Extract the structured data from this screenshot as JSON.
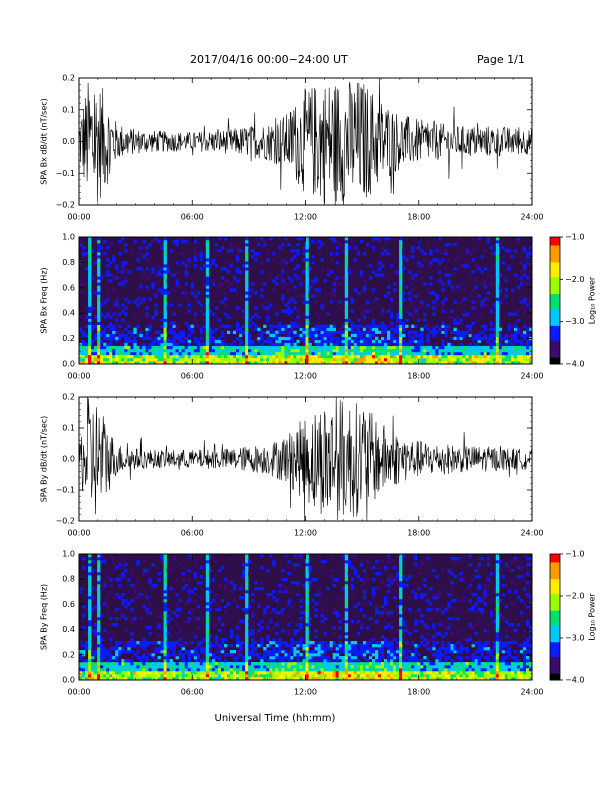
{
  "header": {
    "title": "2017/04/16  00:00−24:00 UT",
    "page": "Page 1/1"
  },
  "colors": {
    "trace": "#000000",
    "spectrogram_background": "#2e0f4a",
    "colormap": [
      "#000000",
      "#3b0b6e",
      "#0a1cff",
      "#00c8ff",
      "#00e070",
      "#9cff00",
      "#ffee00",
      "#ff9a00",
      "#ff0000"
    ]
  },
  "xaxis": {
    "ticks": [
      "00:00",
      "06:00",
      "12:00",
      "18:00",
      "24:00"
    ],
    "label": "Universal Time (hh:mm)"
  },
  "colorbar": {
    "ticks": [
      "−1.0",
      "−2.0",
      "−3.0",
      "−4.0"
    ],
    "label": "Log₁₀ Power"
  },
  "chart_data": [
    {
      "type": "line",
      "panel": "bx",
      "ylabel": "SPA Bx dB/dt (nT/sec)",
      "ylim": [
        -0.2,
        0.2
      ],
      "yticks": [
        "0.2",
        "0.1",
        "0.0",
        "−0.1",
        "−0.2"
      ],
      "xlim": [
        "00:00",
        "24:00"
      ],
      "amplitude_envelope": {
        "hours": [
          0,
          0.5,
          1,
          1.5,
          2,
          3,
          4,
          6,
          8,
          10,
          11,
          12,
          13,
          14,
          15,
          16,
          17,
          18,
          20,
          22,
          24
        ],
        "values": [
          0.08,
          0.2,
          0.2,
          0.14,
          0.06,
          0.04,
          0.035,
          0.03,
          0.04,
          0.06,
          0.09,
          0.17,
          0.2,
          0.2,
          0.2,
          0.14,
          0.09,
          0.07,
          0.05,
          0.05,
          0.04
        ]
      }
    },
    {
      "type": "heatmap",
      "panel": "bx-spectrogram",
      "ylabel": "SPA Bx Freq (Hz)",
      "ylim": [
        0.0,
        1.0
      ],
      "yticks": [
        "1.0",
        "0.8",
        "0.6",
        "0.4",
        "0.2",
        "0.0"
      ],
      "xlim": [
        "00:00",
        "24:00"
      ],
      "color_range": [
        -4.0,
        -1.0
      ],
      "bright_columns_hours": [
        0.5,
        1.0,
        4.4,
        6.7,
        8.8,
        12.0,
        14.0,
        17.0,
        22.0
      ]
    },
    {
      "type": "line",
      "panel": "by",
      "ylabel": "SPA By dB/dt (nT/sec)",
      "ylim": [
        -0.2,
        0.2
      ],
      "yticks": [
        "0.2",
        "0.1",
        "0.0",
        "−0.1",
        "−0.2"
      ],
      "xlim": [
        "00:00",
        "24:00"
      ],
      "amplitude_envelope": {
        "hours": [
          0,
          0.5,
          1,
          1.5,
          2,
          3,
          4,
          6,
          8,
          10,
          11,
          12,
          13,
          14,
          15,
          16,
          17,
          18,
          20,
          22,
          24
        ],
        "values": [
          0.06,
          0.2,
          0.2,
          0.12,
          0.05,
          0.035,
          0.03,
          0.03,
          0.035,
          0.05,
          0.08,
          0.14,
          0.19,
          0.2,
          0.18,
          0.12,
          0.08,
          0.06,
          0.045,
          0.04,
          0.03
        ]
      }
    },
    {
      "type": "heatmap",
      "panel": "by-spectrogram",
      "ylabel": "SPA By Freq (Hz)",
      "ylim": [
        0.0,
        1.0
      ],
      "yticks": [
        "1.0",
        "0.8",
        "0.6",
        "0.4",
        "0.2",
        "0.0"
      ],
      "xlim": [
        "00:00",
        "24:00"
      ],
      "color_range": [
        -4.0,
        -1.0
      ],
      "bright_columns_hours": [
        0.5,
        1.0,
        4.4,
        6.7,
        8.8,
        12.0,
        14.0,
        17.0,
        22.0
      ]
    }
  ]
}
